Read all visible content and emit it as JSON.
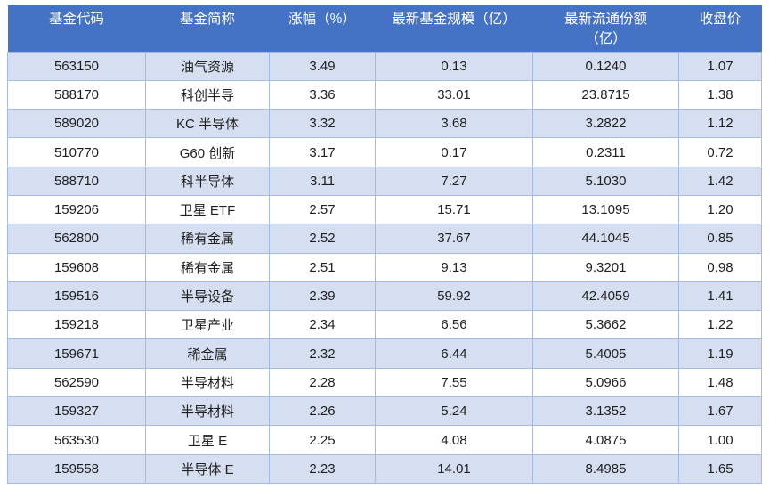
{
  "colors": {
    "header_bg": "#4472C4",
    "header_text": "#FFFFFF",
    "band": "#D6DFF1",
    "row_plain": "#FFFFFF",
    "border": "#A5BBE3",
    "text": "#1F1F1F",
    "page_bg": "#FFFFFF"
  },
  "table": {
    "columns": [
      {
        "key": "fund-code",
        "label": "基金代码"
      },
      {
        "key": "fund-name",
        "label": "基金简称"
      },
      {
        "key": "change-pct",
        "label": "涨幅（%）"
      },
      {
        "key": "fund-scale",
        "label": "最新基金规模（亿）"
      },
      {
        "key": "float-shares",
        "label": "最新流通份额\n（亿）"
      },
      {
        "key": "close-price",
        "label": "收盘价"
      }
    ],
    "rows": [
      [
        "563150",
        "油气资源",
        "3.49",
        "0.13",
        "0.1240",
        "1.07"
      ],
      [
        "588170",
        "科创半导",
        "3.36",
        "33.01",
        "23.8715",
        "1.38"
      ],
      [
        "589020",
        "KC 半导体",
        "3.32",
        "3.68",
        "3.2822",
        "1.12"
      ],
      [
        "510770",
        "G60 创新",
        "3.17",
        "0.17",
        "0.2311",
        "0.72"
      ],
      [
        "588710",
        "科半导体",
        "3.11",
        "7.27",
        "5.1030",
        "1.42"
      ],
      [
        "159206",
        "卫星 ETF",
        "2.57",
        "15.71",
        "13.1095",
        "1.20"
      ],
      [
        "562800",
        "稀有金属",
        "2.52",
        "37.67",
        "44.1045",
        "0.85"
      ],
      [
        "159608",
        "稀有金属",
        "2.51",
        "9.13",
        "9.3201",
        "0.98"
      ],
      [
        "159516",
        "半导设备",
        "2.39",
        "59.92",
        "42.4059",
        "1.41"
      ],
      [
        "159218",
        "卫星产业",
        "2.34",
        "6.56",
        "5.3662",
        "1.22"
      ],
      [
        "159671",
        "稀金属",
        "2.32",
        "6.44",
        "5.4005",
        "1.19"
      ],
      [
        "562590",
        "半导材料",
        "2.28",
        "7.55",
        "5.0966",
        "1.48"
      ],
      [
        "159327",
        "半导材料",
        "2.26",
        "5.24",
        "3.1352",
        "1.67"
      ],
      [
        "563530",
        "卫星 E",
        "2.25",
        "4.08",
        "4.0875",
        "1.00"
      ],
      [
        "159558",
        "半导体 E",
        "2.23",
        "14.01",
        "8.4985",
        "1.65"
      ]
    ]
  }
}
